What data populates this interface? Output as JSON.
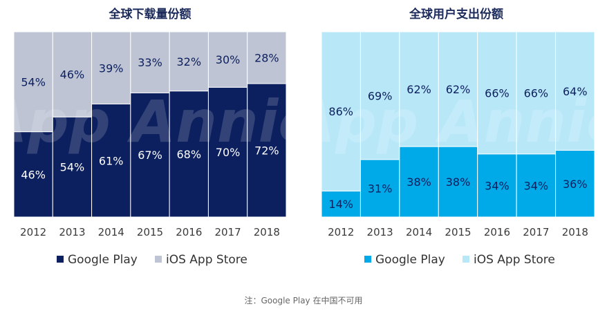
{
  "colors": {
    "google_play_dark": "#0c1f5e",
    "ios_light_gray": "#bec4d4",
    "google_play_blue": "#00a9e8",
    "ios_light_blue": "#b8e7f8",
    "title_color": "#1b2a5a",
    "label_dark": "#0c1f5e",
    "label_white": "#ffffff"
  },
  "watermark_text": "App Annie",
  "chart_data": [
    {
      "type": "bar",
      "stacked": true,
      "title": "全球下载量份额",
      "categories": [
        "2012",
        "2013",
        "2014",
        "2015",
        "2016",
        "2017",
        "2018"
      ],
      "series": [
        {
          "name": "Google Play",
          "values": [
            46,
            54,
            61,
            67,
            68,
            70,
            72
          ],
          "labels": [
            "46%",
            "54%",
            "61%",
            "67%",
            "68%",
            "70%",
            "72%"
          ]
        },
        {
          "name": "iOS App Store",
          "values": [
            54,
            46,
            39,
            33,
            32,
            30,
            28
          ],
          "labels": [
            "54%",
            "46%",
            "39%",
            "33%",
            "32%",
            "30%",
            "28%"
          ]
        }
      ],
      "ylim": [
        0,
        100
      ],
      "legend": "bottom"
    },
    {
      "type": "bar",
      "stacked": true,
      "title": "全球用户支出份额",
      "categories": [
        "2012",
        "2013",
        "2014",
        "2015",
        "2016",
        "2017",
        "2018"
      ],
      "series": [
        {
          "name": "Google Play",
          "values": [
            14,
            31,
            38,
            38,
            34,
            34,
            36
          ],
          "labels": [
            "14%",
            "31%",
            "38%",
            "38%",
            "34%",
            "34%",
            "36%"
          ]
        },
        {
          "name": "iOS App Store",
          "values": [
            86,
            69,
            62,
            62,
            66,
            66,
            64
          ],
          "labels": [
            "86%",
            "69%",
            "62%",
            "62%",
            "66%",
            "66%",
            "64%"
          ]
        }
      ],
      "ylim": [
        0,
        100
      ],
      "legend": "bottom"
    }
  ],
  "footnote": "注：Google Play 在中国不可用"
}
